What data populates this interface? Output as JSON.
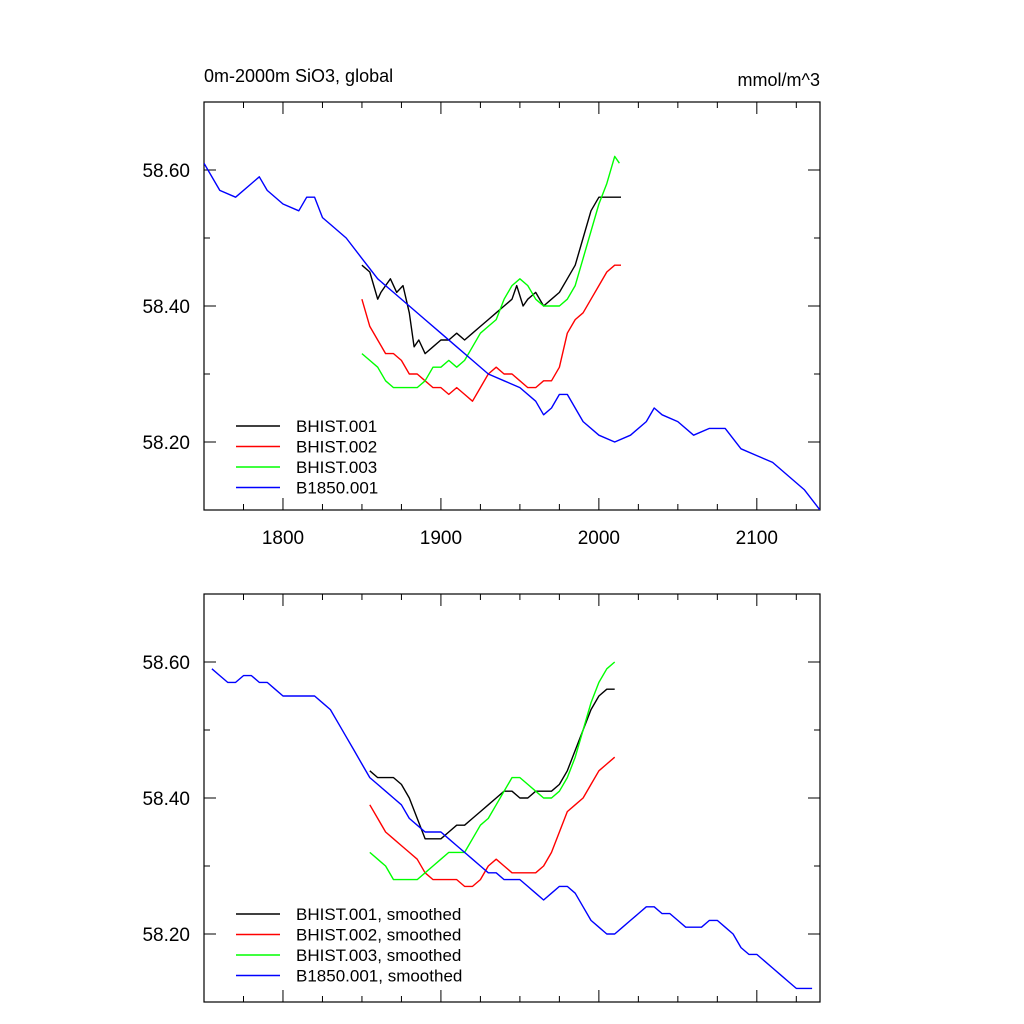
{
  "chart_data": [
    {
      "type": "line",
      "title": "0m-2000m SiO3, global",
      "units": "mmol/m^3",
      "xlim": [
        1750,
        2140
      ],
      "ylim": [
        58.1,
        58.7
      ],
      "xticks": [
        1800,
        1900,
        2000,
        2100
      ],
      "xtick_labels": [
        "1800",
        "1900",
        "2000",
        "2100"
      ],
      "yticks": [
        58.2,
        58.4,
        58.6
      ],
      "ytick_labels": [
        "58.20",
        "58.40",
        "58.60"
      ],
      "legend_position": "bottom-left",
      "series": [
        {
          "name": "BHIST.001",
          "color": "#000000",
          "x": [
            1850,
            1855,
            1860,
            1862,
            1865,
            1868,
            1872,
            1876,
            1880,
            1883,
            1886,
            1890,
            1895,
            1900,
            1905,
            1910,
            1915,
            1920,
            1925,
            1930,
            1935,
            1940,
            1945,
            1948,
            1952,
            1955,
            1960,
            1965,
            1970,
            1975,
            1980,
            1985,
            1990,
            1995,
            2000,
            2005,
            2010,
            2014
          ],
          "y": [
            58.46,
            58.45,
            58.41,
            58.42,
            58.43,
            58.44,
            58.42,
            58.43,
            58.39,
            58.34,
            58.35,
            58.33,
            58.34,
            58.35,
            58.35,
            58.36,
            58.35,
            58.36,
            58.37,
            58.38,
            58.39,
            58.4,
            58.41,
            58.43,
            58.4,
            58.41,
            58.42,
            58.4,
            58.41,
            58.42,
            58.44,
            58.46,
            58.5,
            58.54,
            58.56,
            58.56,
            58.56,
            58.56
          ]
        },
        {
          "name": "BHIST.002",
          "color": "#ff0000",
          "x": [
            1850,
            1855,
            1860,
            1865,
            1870,
            1875,
            1880,
            1885,
            1890,
            1895,
            1900,
            1905,
            1910,
            1915,
            1920,
            1925,
            1930,
            1935,
            1940,
            1945,
            1950,
            1955,
            1960,
            1965,
            1970,
            1975,
            1980,
            1985,
            1990,
            1995,
            2000,
            2005,
            2010,
            2014
          ],
          "y": [
            58.41,
            58.37,
            58.35,
            58.33,
            58.33,
            58.32,
            58.3,
            58.3,
            58.29,
            58.28,
            58.28,
            58.27,
            58.28,
            58.27,
            58.26,
            58.28,
            58.3,
            58.31,
            58.3,
            58.3,
            58.29,
            58.28,
            58.28,
            58.29,
            58.29,
            58.31,
            58.36,
            58.38,
            58.39,
            58.41,
            58.43,
            58.45,
            58.46,
            58.46
          ]
        },
        {
          "name": "BHIST.003",
          "color": "#00ff00",
          "x": [
            1850,
            1855,
            1860,
            1865,
            1870,
            1875,
            1880,
            1885,
            1890,
            1895,
            1900,
            1905,
            1910,
            1915,
            1920,
            1925,
            1930,
            1935,
            1940,
            1945,
            1950,
            1955,
            1960,
            1965,
            1970,
            1975,
            1980,
            1985,
            1990,
            1995,
            2000,
            2005,
            2010,
            2013
          ],
          "y": [
            58.33,
            58.32,
            58.31,
            58.29,
            58.28,
            58.28,
            58.28,
            58.28,
            58.29,
            58.31,
            58.31,
            58.32,
            58.31,
            58.32,
            58.34,
            58.36,
            58.37,
            58.38,
            58.41,
            58.43,
            58.44,
            58.43,
            58.41,
            58.4,
            58.4,
            58.4,
            58.41,
            58.43,
            58.47,
            58.51,
            58.55,
            58.58,
            58.62,
            58.61
          ]
        },
        {
          "name": "B1850.001",
          "color": "#0000ff",
          "x": [
            1750,
            1760,
            1770,
            1780,
            1785,
            1790,
            1800,
            1810,
            1815,
            1820,
            1825,
            1830,
            1840,
            1850,
            1860,
            1870,
            1880,
            1890,
            1900,
            1910,
            1920,
            1930,
            1940,
            1950,
            1960,
            1965,
            1970,
            1975,
            1980,
            1990,
            2000,
            2010,
            2020,
            2030,
            2035,
            2040,
            2050,
            2060,
            2070,
            2080,
            2090,
            2100,
            2110,
            2120,
            2130,
            2140
          ],
          "y": [
            58.61,
            58.57,
            58.56,
            58.58,
            58.59,
            58.57,
            58.55,
            58.54,
            58.56,
            58.56,
            58.53,
            58.52,
            58.5,
            58.47,
            58.44,
            58.42,
            58.4,
            58.38,
            58.36,
            58.34,
            58.32,
            58.3,
            58.29,
            58.28,
            58.26,
            58.24,
            58.25,
            58.27,
            58.27,
            58.23,
            58.21,
            58.2,
            58.21,
            58.23,
            58.25,
            58.24,
            58.23,
            58.21,
            58.22,
            58.22,
            58.19,
            58.18,
            58.17,
            58.15,
            58.13,
            58.1
          ]
        }
      ]
    },
    {
      "type": "line",
      "title": "",
      "xlim": [
        1750,
        2140
      ],
      "ylim": [
        58.1,
        58.7
      ],
      "xticks": [
        1800,
        1900,
        2000,
        2100
      ],
      "yticks": [
        58.2,
        58.4,
        58.6
      ],
      "ytick_labels": [
        "58.20",
        "58.40",
        "58.60"
      ],
      "legend_position": "bottom-left",
      "series": [
        {
          "name": "BHIST.001, smoothed",
          "color": "#000000",
          "x": [
            1855,
            1860,
            1865,
            1870,
            1875,
            1880,
            1885,
            1890,
            1895,
            1900,
            1905,
            1910,
            1915,
            1920,
            1925,
            1930,
            1935,
            1940,
            1945,
            1950,
            1955,
            1960,
            1965,
            1970,
            1975,
            1980,
            1985,
            1990,
            1995,
            2000,
            2005,
            2010
          ],
          "y": [
            58.44,
            58.43,
            58.43,
            58.43,
            58.42,
            58.4,
            58.37,
            58.34,
            58.34,
            58.34,
            58.35,
            58.36,
            58.36,
            58.37,
            58.38,
            58.39,
            58.4,
            58.41,
            58.41,
            58.4,
            58.4,
            58.41,
            58.41,
            58.41,
            58.42,
            58.44,
            58.47,
            58.5,
            58.53,
            58.55,
            58.56,
            58.56
          ]
        },
        {
          "name": "BHIST.002, smoothed",
          "color": "#ff0000",
          "x": [
            1855,
            1860,
            1865,
            1870,
            1875,
            1880,
            1885,
            1890,
            1895,
            1900,
            1905,
            1910,
            1915,
            1920,
            1925,
            1930,
            1935,
            1940,
            1945,
            1950,
            1955,
            1960,
            1965,
            1970,
            1975,
            1980,
            1985,
            1990,
            1995,
            2000,
            2005,
            2010
          ],
          "y": [
            58.39,
            58.37,
            58.35,
            58.34,
            58.33,
            58.32,
            58.31,
            58.29,
            58.28,
            58.28,
            58.28,
            58.28,
            58.27,
            58.27,
            58.28,
            58.3,
            58.31,
            58.3,
            58.29,
            58.29,
            58.29,
            58.29,
            58.3,
            58.32,
            58.35,
            58.38,
            58.39,
            58.4,
            58.42,
            58.44,
            58.45,
            58.46
          ]
        },
        {
          "name": "BHIST.003, smoothed",
          "color": "#00ff00",
          "x": [
            1855,
            1860,
            1865,
            1870,
            1875,
            1880,
            1885,
            1890,
            1895,
            1900,
            1905,
            1910,
            1915,
            1920,
            1925,
            1930,
            1935,
            1940,
            1945,
            1950,
            1955,
            1960,
            1965,
            1970,
            1975,
            1980,
            1985,
            1990,
            1995,
            2000,
            2005,
            2010
          ],
          "y": [
            58.32,
            58.31,
            58.3,
            58.28,
            58.28,
            58.28,
            58.28,
            58.29,
            58.3,
            58.31,
            58.32,
            58.32,
            58.32,
            58.34,
            58.36,
            58.37,
            58.39,
            58.41,
            58.43,
            58.43,
            58.42,
            58.41,
            58.4,
            58.4,
            58.41,
            58.43,
            58.46,
            58.5,
            58.54,
            58.57,
            58.59,
            58.6
          ]
        },
        {
          "name": "B1850.001, smoothed",
          "color": "#0000ff",
          "x": [
            1755,
            1760,
            1765,
            1770,
            1775,
            1780,
            1785,
            1790,
            1795,
            1800,
            1805,
            1810,
            1815,
            1820,
            1825,
            1830,
            1835,
            1840,
            1845,
            1850,
            1855,
            1860,
            1865,
            1870,
            1875,
            1880,
            1885,
            1890,
            1895,
            1900,
            1905,
            1910,
            1915,
            1920,
            1925,
            1930,
            1935,
            1940,
            1945,
            1950,
            1955,
            1960,
            1965,
            1970,
            1975,
            1980,
            1985,
            1990,
            1995,
            2000,
            2005,
            2010,
            2015,
            2020,
            2025,
            2030,
            2035,
            2040,
            2045,
            2050,
            2055,
            2060,
            2065,
            2070,
            2075,
            2080,
            2085,
            2090,
            2095,
            2100,
            2105,
            2110,
            2115,
            2120,
            2125,
            2130,
            2135
          ],
          "y": [
            58.59,
            58.58,
            58.57,
            58.57,
            58.58,
            58.58,
            58.57,
            58.57,
            58.56,
            58.55,
            58.55,
            58.55,
            58.55,
            58.55,
            58.54,
            58.53,
            58.51,
            58.49,
            58.47,
            58.45,
            58.43,
            58.42,
            58.41,
            58.4,
            58.39,
            58.37,
            58.36,
            58.35,
            58.35,
            58.35,
            58.34,
            58.33,
            58.32,
            58.31,
            58.3,
            58.29,
            58.29,
            58.28,
            58.28,
            58.28,
            58.27,
            58.26,
            58.25,
            58.26,
            58.27,
            58.27,
            58.26,
            58.24,
            58.22,
            58.21,
            58.2,
            58.2,
            58.21,
            58.22,
            58.23,
            58.24,
            58.24,
            58.23,
            58.23,
            58.22,
            58.21,
            58.21,
            58.21,
            58.22,
            58.22,
            58.21,
            58.2,
            58.18,
            58.17,
            58.17,
            58.16,
            58.15,
            58.14,
            58.13,
            58.12,
            58.12,
            58.12
          ]
        }
      ]
    }
  ]
}
